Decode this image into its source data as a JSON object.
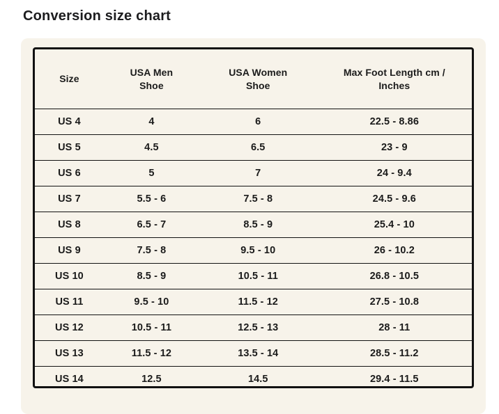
{
  "page": {
    "title": "Conversion size chart",
    "background": "#ffffff"
  },
  "colors": {
    "panel_bg": "#f7f3ea",
    "table_border": "#111111",
    "divider": "#111111",
    "text": "#1b1b1b"
  },
  "table_display": {
    "headers": [
      "Size",
      "USA Men\nShoe",
      "USA Women\nShoe",
      "Max Foot Length cm /\nInches"
    ]
  },
  "chart_data": {
    "type": "table",
    "title": "Conversion size chart",
    "columns": [
      "Size",
      "USA Men Shoe",
      "USA Women Shoe",
      "Max Foot Length cm / Inches"
    ],
    "rows": [
      [
        "US 4",
        "4",
        "6",
        "22.5 - 8.86"
      ],
      [
        "US 5",
        "4.5",
        "6.5",
        "23 - 9"
      ],
      [
        "US 6",
        "5",
        "7",
        "24 - 9.4"
      ],
      [
        "US 7",
        "5.5 - 6",
        "7.5 - 8",
        "24.5 - 9.6"
      ],
      [
        "US 8",
        "6.5 - 7",
        "8.5 - 9",
        "25.4 - 10"
      ],
      [
        "US 9",
        "7.5 - 8",
        "9.5 - 10",
        "26 - 10.2"
      ],
      [
        "US 10",
        "8.5 - 9",
        "10.5 - 11",
        "26.8 - 10.5"
      ],
      [
        "US 11",
        "9.5 - 10",
        "11.5 - 12",
        "27.5 - 10.8"
      ],
      [
        "US 12",
        "10.5 - 11",
        "12.5 - 13",
        "28 - 11"
      ],
      [
        "US 13",
        "11.5 - 12",
        "13.5 - 14",
        "28.5 - 11.2"
      ],
      [
        "US 14",
        "12.5",
        "14.5",
        "29.4 - 11.5"
      ]
    ]
  }
}
